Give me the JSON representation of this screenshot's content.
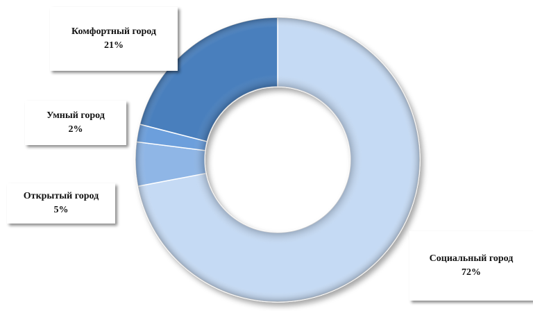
{
  "chart_data": {
    "type": "pie",
    "style": "doughnut",
    "title": "",
    "slices": [
      {
        "label": "Социальный город",
        "value": 72,
        "value_label": "72%",
        "color": "#c5daf4"
      },
      {
        "label": "Открытый город",
        "value": 5,
        "value_label": "5%",
        "color": "#8fb6e6"
      },
      {
        "label": "Умный город",
        "value": 2,
        "value_label": "2%",
        "color": "#6c9fdc"
      },
      {
        "label": "Комфортный город",
        "value": 21,
        "value_label": "21%",
        "color": "#4a7fbd"
      }
    ],
    "legend": "none",
    "data_labels": "callouts"
  }
}
